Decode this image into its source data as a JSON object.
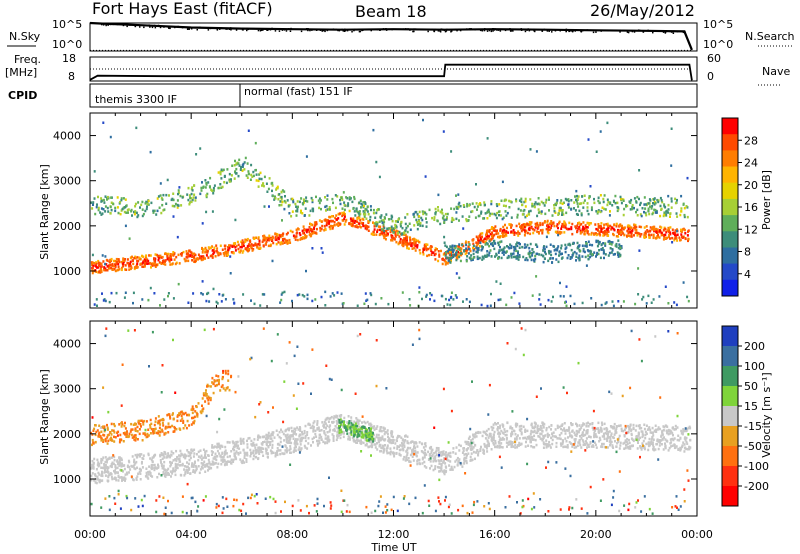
{
  "header": {
    "station": "Fort Hays East (fitACF)",
    "beam": "Beam 18",
    "date": "26/May/2012"
  },
  "top_panels": {
    "nsky_label": "N.Sky",
    "nsky_ticks": [
      "10^5",
      "10^0"
    ],
    "nsearch_label": "N.Search",
    "nsearch_ticks": [
      "10^5",
      "10^0"
    ],
    "freq_label": "Freq.",
    "freq_unit": "[MHz]",
    "freq_ticks": [
      "18",
      "8"
    ],
    "nave_label": "Nave",
    "nave_ticks": [
      "60",
      "0"
    ],
    "cpid_label": "CPID",
    "cpid_segments": [
      "themis 3300 IF",
      "normal (fast) 151 IF"
    ]
  },
  "axes": {
    "ylabel": "Slant Range [km]",
    "xlabel": "Time UT",
    "y_ticks": [
      "1000",
      "2000",
      "3000",
      "4000"
    ],
    "x_ticks": [
      "00:00",
      "04:00",
      "08:00",
      "12:00",
      "16:00",
      "20:00",
      "00:00"
    ]
  },
  "colorbars": {
    "power": {
      "label": "Power [dB]",
      "ticks": [
        "28",
        "24",
        "20",
        "16",
        "12",
        "8",
        "4"
      ],
      "colors": [
        "#ff0000",
        "#ff4a00",
        "#ff7d00",
        "#ffb400",
        "#e6d200",
        "#a7cf35",
        "#5fae5a",
        "#3d8d7a",
        "#2e6ea0",
        "#2449c8",
        "#1020e8"
      ]
    },
    "velocity": {
      "label": "Velocity [m s⁻¹]",
      "ticks": [
        "200",
        "100",
        "50",
        "15",
        "-15",
        "-50",
        "-100",
        "-200"
      ],
      "colors": [
        "#1f3fbf",
        "#3a6fa0",
        "#3f9a62",
        "#7fd43a",
        "#c8c8c8",
        "#e8a020",
        "#ff7010",
        "#ff3010",
        "#ff0000"
      ]
    }
  },
  "chart_data": [
    {
      "type": "line",
      "title": "N.Sky / N.Search",
      "x_unit": "hours UT",
      "x": [
        0,
        0.5,
        1,
        2,
        4,
        6,
        8,
        10,
        12,
        14,
        16,
        18,
        20,
        22,
        23.5,
        23.8
      ],
      "series": [
        {
          "name": "N.Sky",
          "values_log10": [
            5.0,
            4.9,
            4.8,
            4.6,
            4.2,
            4.0,
            3.9,
            3.8,
            3.9,
            3.8,
            3.9,
            3.8,
            3.7,
            3.6,
            3.5,
            0.2
          ]
        },
        {
          "name": "N.Search",
          "values_log10": [
            0.1,
            0.1,
            0.1,
            0.1,
            0.1,
            0.1,
            0.1,
            0.1,
            0.1,
            0.1,
            0.1,
            0.1,
            0.1,
            0.1,
            0.1,
            0.1
          ]
        }
      ],
      "ylim_log10": [
        0,
        5
      ]
    },
    {
      "type": "line",
      "title": "Freq. / Nave",
      "x_unit": "hours UT",
      "x": [
        0,
        0.3,
        3,
        6,
        8,
        14,
        14.05,
        23.7,
        23.8
      ],
      "series": [
        {
          "name": "Freq. [MHz]",
          "values": [
            8.5,
            10.2,
            10.0,
            10.0,
            10.0,
            10.0,
            14.8,
            14.8,
            8.3
          ]
        },
        {
          "name": "Nave",
          "values": [
            30,
            30,
            30,
            30,
            30,
            30,
            30,
            30,
            30
          ]
        }
      ],
      "ylim_freq": [
        8,
        18
      ],
      "ylim_nave": [
        0,
        60
      ]
    },
    {
      "type": "heatmap",
      "title": "Power",
      "xlim_hours": [
        0,
        24
      ],
      "ylim_km": [
        180,
        4500
      ],
      "range_features": [
        {
          "feature": "strong echo band",
          "hours": [
            0,
            4,
            8,
            10,
            12,
            14,
            16,
            18,
            20,
            22,
            24
          ],
          "range_km": [
            1100,
            1350,
            1800,
            2200,
            1800,
            1300,
            1900,
            2000,
            1950,
            1900,
            1800
          ],
          "power_dB": 24
        },
        {
          "feature": "upper echo band",
          "hours": [
            0,
            2,
            4,
            5,
            6,
            8,
            10,
            12,
            14,
            16,
            20,
            24
          ],
          "range_km": [
            2500,
            2400,
            2700,
            3000,
            3400,
            2400,
            2600,
            2000,
            2300,
            2400,
            2500,
            2400
          ],
          "power_dB": 12
        },
        {
          "feature": "lower scattered echoes",
          "hours": [
            14,
            16,
            18,
            20
          ],
          "range_km": [
            1400,
            1500,
            1400,
            1500
          ],
          "power_dB": 8
        }
      ]
    },
    {
      "type": "heatmap",
      "title": "Velocity",
      "xlim_hours": [
        0,
        24
      ],
      "ylim_km": [
        180,
        4500
      ],
      "range_features": [
        {
          "feature": "ground-scatter band (near zero velocity)",
          "hours": [
            0,
            4,
            8,
            10,
            12,
            14,
            16,
            20,
            24
          ],
          "range_km": [
            1200,
            1400,
            1900,
            2200,
            1800,
            1400,
            2000,
            2000,
            1900
          ],
          "velocity_ms": 0
        },
        {
          "feature": "negative velocity echoes",
          "hours": [
            0,
            2,
            4,
            5
          ],
          "range_km": [
            2000,
            2100,
            2400,
            3200
          ],
          "velocity_ms": -50
        },
        {
          "feature": "positive velocity echoes",
          "hours": [
            10,
            11
          ],
          "range_km": [
            2200,
            2000
          ],
          "velocity_ms": 50
        }
      ]
    }
  ]
}
